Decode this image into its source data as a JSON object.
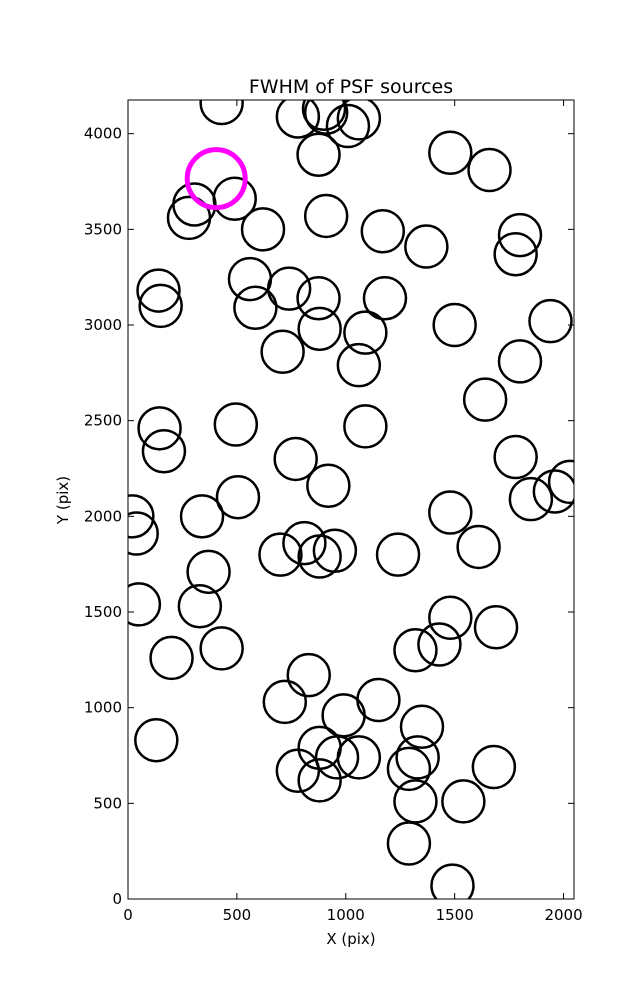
{
  "chart_data": {
    "type": "scatter",
    "title": "FWHM of PSF sources",
    "xlabel": "X (pix)",
    "ylabel": "Y (pix)",
    "xlim": [
      0,
      2048
    ],
    "ylim": [
      0,
      4176
    ],
    "xticks": [
      0,
      500,
      1000,
      1500,
      2000
    ],
    "yticks": [
      0,
      500,
      1000,
      1500,
      2000,
      2500,
      3000,
      3500,
      4000
    ],
    "grid": false,
    "marker": "open-circle",
    "colors": {
      "normal": "#000000",
      "highlight": "#ff00ff"
    },
    "highlighted_point": {
      "x": 405,
      "y": 3765
    },
    "points": [
      {
        "x": 430,
        "y": 4160
      },
      {
        "x": 780,
        "y": 4090
      },
      {
        "x": 900,
        "y": 4130
      },
      {
        "x": 910,
        "y": 4110
      },
      {
        "x": 1010,
        "y": 4040
      },
      {
        "x": 1060,
        "y": 4080
      },
      {
        "x": 875,
        "y": 3890
      },
      {
        "x": 1480,
        "y": 3900
      },
      {
        "x": 1660,
        "y": 3810
      },
      {
        "x": 305,
        "y": 3630
      },
      {
        "x": 280,
        "y": 3560
      },
      {
        "x": 490,
        "y": 3660
      },
      {
        "x": 620,
        "y": 3500
      },
      {
        "x": 910,
        "y": 3570
      },
      {
        "x": 1170,
        "y": 3490
      },
      {
        "x": 1370,
        "y": 3410
      },
      {
        "x": 1800,
        "y": 3470
      },
      {
        "x": 1780,
        "y": 3370
      },
      {
        "x": 140,
        "y": 3180
      },
      {
        "x": 150,
        "y": 3100
      },
      {
        "x": 560,
        "y": 3240
      },
      {
        "x": 585,
        "y": 3090
      },
      {
        "x": 740,
        "y": 3190
      },
      {
        "x": 875,
        "y": 3140
      },
      {
        "x": 880,
        "y": 2980
      },
      {
        "x": 1180,
        "y": 3140
      },
      {
        "x": 1090,
        "y": 2960
      },
      {
        "x": 1500,
        "y": 3000
      },
      {
        "x": 1940,
        "y": 3020
      },
      {
        "x": 710,
        "y": 2860
      },
      {
        "x": 1060,
        "y": 2790
      },
      {
        "x": 1800,
        "y": 2810
      },
      {
        "x": 1640,
        "y": 2610
      },
      {
        "x": 145,
        "y": 2460
      },
      {
        "x": 165,
        "y": 2340
      },
      {
        "x": 495,
        "y": 2480
      },
      {
        "x": 1090,
        "y": 2470
      },
      {
        "x": 770,
        "y": 2300
      },
      {
        "x": 920,
        "y": 2160
      },
      {
        "x": 1780,
        "y": 2310
      },
      {
        "x": 1850,
        "y": 2090
      },
      {
        "x": 1960,
        "y": 2130
      },
      {
        "x": 2030,
        "y": 2180
      },
      {
        "x": 20,
        "y": 2000
      },
      {
        "x": 40,
        "y": 1910
      },
      {
        "x": 340,
        "y": 2000
      },
      {
        "x": 505,
        "y": 2100
      },
      {
        "x": 1480,
        "y": 2020
      },
      {
        "x": 1610,
        "y": 1840
      },
      {
        "x": 700,
        "y": 1800
      },
      {
        "x": 810,
        "y": 1860
      },
      {
        "x": 880,
        "y": 1790
      },
      {
        "x": 950,
        "y": 1820
      },
      {
        "x": 1240,
        "y": 1800
      },
      {
        "x": 370,
        "y": 1710
      },
      {
        "x": 50,
        "y": 1540
      },
      {
        "x": 330,
        "y": 1530
      },
      {
        "x": 1480,
        "y": 1470
      },
      {
        "x": 1690,
        "y": 1420
      },
      {
        "x": 200,
        "y": 1260
      },
      {
        "x": 430,
        "y": 1310
      },
      {
        "x": 1320,
        "y": 1300
      },
      {
        "x": 1430,
        "y": 1330
      },
      {
        "x": 830,
        "y": 1170
      },
      {
        "x": 720,
        "y": 1030
      },
      {
        "x": 1150,
        "y": 1040
      },
      {
        "x": 990,
        "y": 960
      },
      {
        "x": 130,
        "y": 830
      },
      {
        "x": 1350,
        "y": 900
      },
      {
        "x": 880,
        "y": 790
      },
      {
        "x": 960,
        "y": 740
      },
      {
        "x": 1060,
        "y": 740
      },
      {
        "x": 1330,
        "y": 740
      },
      {
        "x": 1290,
        "y": 680
      },
      {
        "x": 1680,
        "y": 690
      },
      {
        "x": 780,
        "y": 670
      },
      {
        "x": 880,
        "y": 620
      },
      {
        "x": 1320,
        "y": 510
      },
      {
        "x": 1540,
        "y": 510
      },
      {
        "x": 1290,
        "y": 290
      },
      {
        "x": 1490,
        "y": 70
      }
    ]
  }
}
